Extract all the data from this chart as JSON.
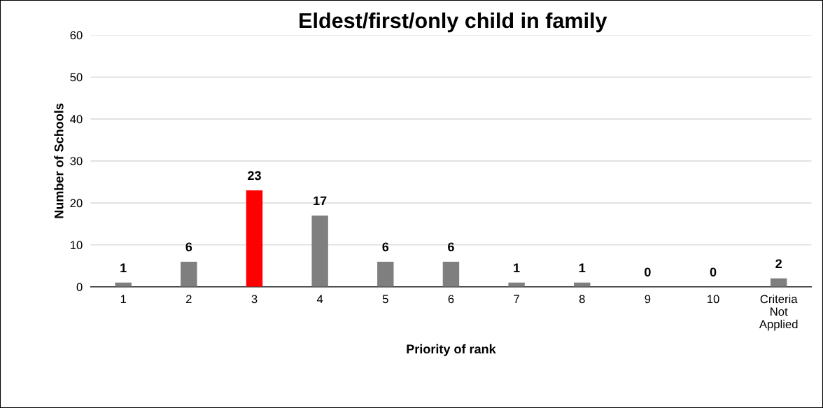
{
  "chart_data": {
    "type": "bar",
    "title": "Eldest/first/only child in family",
    "xlabel": "Priority of rank",
    "ylabel": "Number of Schools",
    "categories": [
      "1",
      "2",
      "3",
      "4",
      "5",
      "6",
      "7",
      "8",
      "9",
      "10",
      "Criteria\nNot\nApplied"
    ],
    "values": [
      1,
      6,
      23,
      17,
      6,
      6,
      1,
      1,
      0,
      0,
      2
    ],
    "colors": [
      "#7f7f7f",
      "#7f7f7f",
      "#ff0000",
      "#7f7f7f",
      "#7f7f7f",
      "#7f7f7f",
      "#7f7f7f",
      "#7f7f7f",
      "#7f7f7f",
      "#7f7f7f",
      "#7f7f7f"
    ],
    "ylim": [
      0,
      60
    ],
    "yticks": [
      0,
      10,
      20,
      30,
      40,
      50,
      60
    ],
    "grid": "y",
    "data_labels": true,
    "legend": false
  }
}
